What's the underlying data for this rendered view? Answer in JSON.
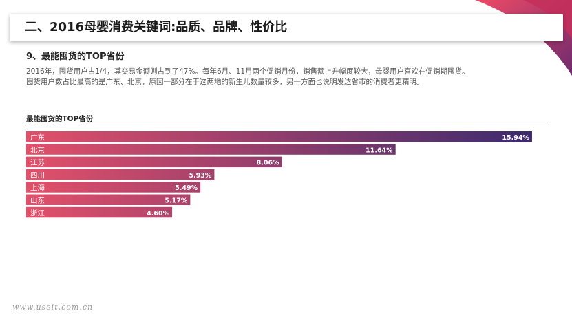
{
  "page": {
    "title": "二、2016母婴消费关键词:品质、品牌、性价比",
    "section_title": "9、最能囤货的TOP省份",
    "description": [
      "2016年，囤货用户占1/4，其交易金额则占到了47%。每年6月、11月两个促销月份，销售额上升幅度较大，母婴用户喜欢在促销期囤货。",
      "囤货用户数占比最高的是广东、北京，原因一部分在于这两地的新生儿数量较多，另一方面也说明发达省市的消费者更精明。"
    ],
    "watermark": "www.useit.com.cn"
  },
  "colors": {
    "bar_start": "#e2506a",
    "bar_end": "#3b2a6e",
    "deco_primary": "#d8345a",
    "deco_secondary": "#7a2a6a"
  },
  "chart_data": {
    "type": "bar",
    "orientation": "horizontal",
    "title": "最能囤货的TOP省份",
    "categories": [
      "广东",
      "北京",
      "江苏",
      "四川",
      "上海",
      "山东",
      "浙江"
    ],
    "values": [
      15.94,
      11.64,
      8.06,
      5.93,
      5.49,
      5.17,
      4.6
    ],
    "value_labels": [
      "15.94%",
      "11.64%",
      "8.06%",
      "5.93%",
      "5.49%",
      "5.17%",
      "4.60%"
    ],
    "unit": "%",
    "xlim": [
      0,
      16.7
    ],
    "grid": false,
    "legend": "none"
  }
}
